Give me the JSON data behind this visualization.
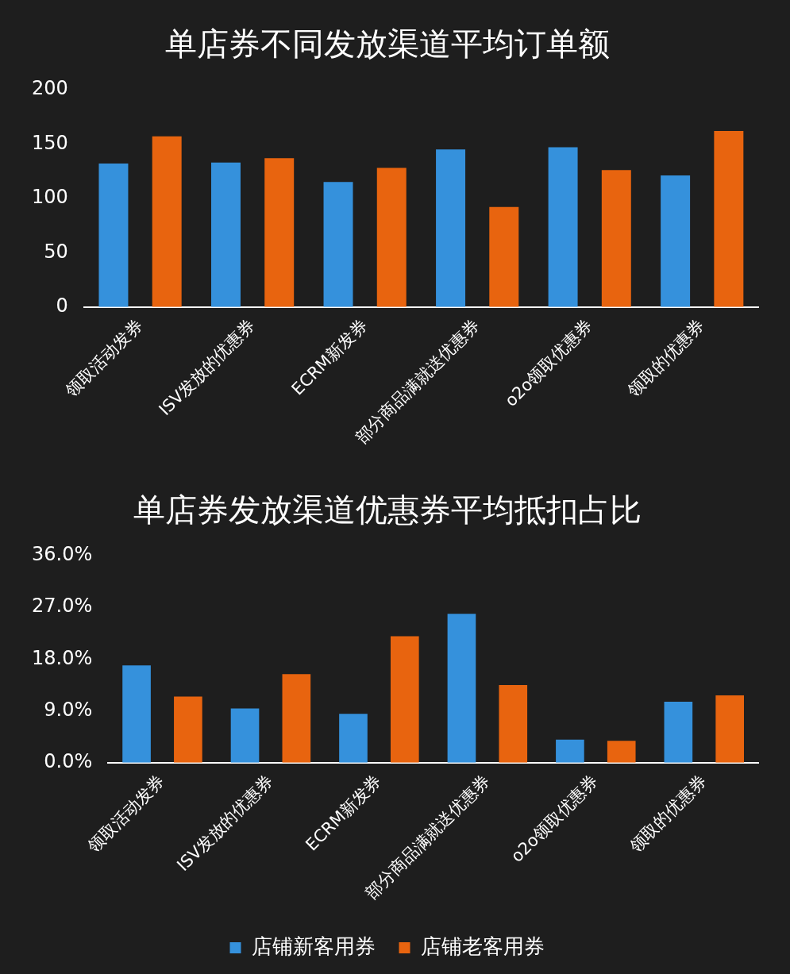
{
  "chart_data": [
    {
      "type": "bar",
      "title": "单店券不同发放渠道平均订单额",
      "categories": [
        "领取活动发券",
        "ISV发放的优惠券",
        "ECRM新发券",
        "部分商品满就送优惠券",
        "o2o领取优惠券",
        "领取的优惠券"
      ],
      "series": [
        {
          "color": "#3591dc",
          "values": [
            132,
            133,
            115,
            145,
            147,
            121
          ]
        },
        {
          "color": "#e8640f",
          "values": [
            157,
            137,
            128,
            92,
            126,
            162
          ]
        }
      ],
      "ylim": [
        0,
        200
      ],
      "yticks": [
        0,
        50,
        100,
        150,
        200
      ],
      "grid": false,
      "legend": false
    },
    {
      "type": "bar",
      "title": "单店券发放渠道优惠券平均抵扣占比",
      "categories": [
        "领取活动发券",
        "ISV发放的优惠券",
        "ECRM新发券",
        "部分商品满就送优惠券",
        "o2o领取优惠券",
        "领取的优惠券"
      ],
      "series": [
        {
          "name": "店铺新客用券",
          "color": "#3591dc",
          "values": [
            16.9,
            9.4,
            8.5,
            25.9,
            4.0,
            10.6
          ]
        },
        {
          "name": "店铺老客用券",
          "color": "#e8640f",
          "values": [
            11.5,
            15.4,
            22.0,
            13.5,
            3.8,
            11.7
          ]
        }
      ],
      "ylim": [
        0,
        36
      ],
      "yticks": [
        {
          "value": 0,
          "label": "0.0%"
        },
        {
          "value": 9,
          "label": "9.0%"
        },
        {
          "value": 18,
          "label": "18.0%"
        },
        {
          "value": 27,
          "label": "27.0%"
        },
        {
          "value": 36,
          "label": "36.0%"
        }
      ],
      "grid": false,
      "legend": "bottom"
    }
  ]
}
